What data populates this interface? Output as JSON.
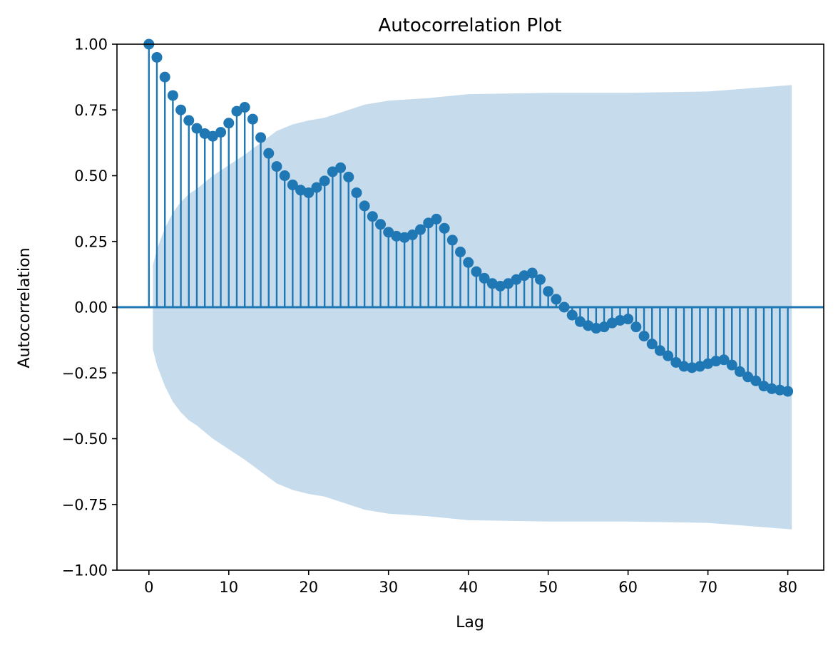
{
  "chart_data": {
    "type": "stem",
    "title": "Autocorrelation Plot",
    "xlabel": "Lag",
    "ylabel": "Autocorrelation",
    "xlim": [
      -4,
      84.5
    ],
    "ylim": [
      -1.0,
      1.0
    ],
    "x_ticks": [
      0,
      10,
      20,
      30,
      40,
      50,
      60,
      70,
      80
    ],
    "x_tick_labels": [
      "0",
      "10",
      "20",
      "30",
      "40",
      "50",
      "60",
      "70",
      "80"
    ],
    "y_ticks": [
      -1.0,
      -0.75,
      -0.5,
      -0.25,
      0.0,
      0.25,
      0.5,
      0.75,
      1.0
    ],
    "y_tick_labels": [
      "−1.00",
      "−0.75",
      "−0.50",
      "−0.25",
      "0.00",
      "0.25",
      "0.50",
      "0.75",
      "1.00"
    ],
    "grid": false,
    "lags": [
      0,
      1,
      2,
      3,
      4,
      5,
      6,
      7,
      8,
      9,
      10,
      11,
      12,
      13,
      14,
      15,
      16,
      17,
      18,
      19,
      20,
      21,
      22,
      23,
      24,
      25,
      26,
      27,
      28,
      29,
      30,
      31,
      32,
      33,
      34,
      35,
      36,
      37,
      38,
      39,
      40,
      41,
      42,
      43,
      44,
      45,
      46,
      47,
      48,
      49,
      50,
      51,
      52,
      53,
      54,
      55,
      56,
      57,
      58,
      59,
      60,
      61,
      62,
      63,
      64,
      65,
      66,
      67,
      68,
      69,
      70,
      71,
      72,
      73,
      74,
      75,
      76,
      77,
      78,
      79,
      80
    ],
    "acf": [
      1.0,
      0.95,
      0.875,
      0.805,
      0.75,
      0.71,
      0.68,
      0.66,
      0.65,
      0.665,
      0.7,
      0.745,
      0.76,
      0.715,
      0.645,
      0.585,
      0.535,
      0.5,
      0.465,
      0.445,
      0.435,
      0.455,
      0.48,
      0.515,
      0.53,
      0.495,
      0.435,
      0.385,
      0.345,
      0.315,
      0.285,
      0.27,
      0.265,
      0.275,
      0.295,
      0.32,
      0.335,
      0.3,
      0.255,
      0.21,
      0.17,
      0.135,
      0.11,
      0.09,
      0.08,
      0.09,
      0.105,
      0.12,
      0.13,
      0.105,
      0.06,
      0.03,
      0.0,
      -0.03,
      -0.055,
      -0.07,
      -0.08,
      -0.075,
      -0.06,
      -0.05,
      -0.045,
      -0.075,
      -0.11,
      -0.14,
      -0.165,
      -0.185,
      -0.21,
      -0.225,
      -0.23,
      -0.225,
      -0.215,
      -0.205,
      -0.2,
      -0.22,
      -0.245,
      -0.265,
      -0.28,
      -0.3,
      -0.31,
      -0.315,
      -0.32
    ],
    "confidence_band": {
      "lags": [
        0.5,
        1,
        2,
        3,
        4,
        5,
        6,
        8,
        10,
        12,
        14,
        16,
        18,
        20,
        22,
        25,
        27,
        30,
        35,
        40,
        50,
        60,
        70,
        80.5
      ],
      "upper": [
        0.16,
        0.22,
        0.3,
        0.36,
        0.4,
        0.43,
        0.45,
        0.5,
        0.54,
        0.58,
        0.625,
        0.67,
        0.695,
        0.71,
        0.72,
        0.75,
        0.77,
        0.785,
        0.795,
        0.81,
        0.815,
        0.815,
        0.82,
        0.845
      ]
    },
    "colors": {
      "stem": "#1f77b4",
      "band": "#c6dbec",
      "zero_line": "#1f77b4"
    }
  }
}
